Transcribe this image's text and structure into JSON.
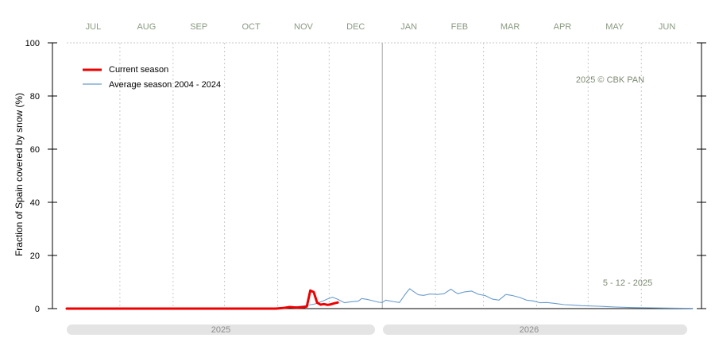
{
  "chart_data": {
    "type": "line",
    "ylabel": "Fraction of  Spain  covered by snow (%)",
    "ylim": [
      0,
      100
    ],
    "yticks": [
      "0",
      "20",
      "40",
      "60",
      "80",
      "100"
    ],
    "months": [
      "JUL",
      "AUG",
      "SEP",
      "OCT",
      "NOV",
      "DEC",
      "JAN",
      "FEB",
      "MAR",
      "APR",
      "MAY",
      "JUN"
    ],
    "xlim": [
      0,
      365
    ],
    "year_labels": [
      "2025",
      "2026"
    ],
    "copyright": "2025  © CBK PAN",
    "date_note": "5 - 12 - 2025",
    "grid": "dotted vertical month lines",
    "legend_position": "top-left",
    "series": [
      {
        "name": "Current season",
        "color": "#ee0000",
        "x": [
          0,
          30,
          60,
          90,
          110,
          122,
          126,
          130,
          134,
          138,
          140,
          142,
          144,
          146,
          148,
          150,
          152,
          154,
          156,
          158
        ],
        "y": [
          0,
          0,
          0,
          0,
          0,
          0,
          0.2,
          0.6,
          0.4,
          0.5,
          0.8,
          6.8,
          6.2,
          2.2,
          1.5,
          1.7,
          1.4,
          1.6,
          2.0,
          2.3
        ]
      },
      {
        "name": "Average season 2004 - 2024",
        "color": "#6a9ccc",
        "x": [
          0,
          60,
          100,
          120,
          125,
          130,
          135,
          140,
          145,
          150,
          152,
          155,
          158,
          162,
          166,
          170,
          172,
          175,
          178,
          182,
          184,
          186,
          190,
          194,
          198,
          200,
          202,
          205,
          208,
          212,
          216,
          220,
          224,
          226,
          228,
          232,
          236,
          240,
          244,
          248,
          252,
          256,
          260,
          264,
          268,
          272,
          276,
          280,
          285,
          290,
          295,
          300,
          310,
          320,
          330,
          340,
          350,
          365
        ],
        "y": [
          0,
          0,
          0,
          0,
          0.3,
          0.6,
          0.8,
          1.2,
          1.8,
          3.0,
          3.6,
          4.3,
          3.5,
          2.2,
          2.6,
          2.8,
          3.8,
          3.5,
          3.0,
          2.4,
          2.3,
          3.2,
          2.7,
          2.3,
          6.0,
          7.5,
          6.5,
          5.2,
          5.0,
          5.5,
          5.3,
          5.6,
          7.3,
          6.4,
          5.6,
          6.3,
          6.6,
          5.4,
          4.9,
          3.6,
          3.2,
          5.3,
          4.9,
          4.2,
          3.2,
          2.9,
          2.2,
          2.3,
          1.9,
          1.5,
          1.3,
          1.1,
          0.9,
          0.6,
          0.4,
          0.3,
          0.2,
          0.1
        ]
      }
    ]
  }
}
